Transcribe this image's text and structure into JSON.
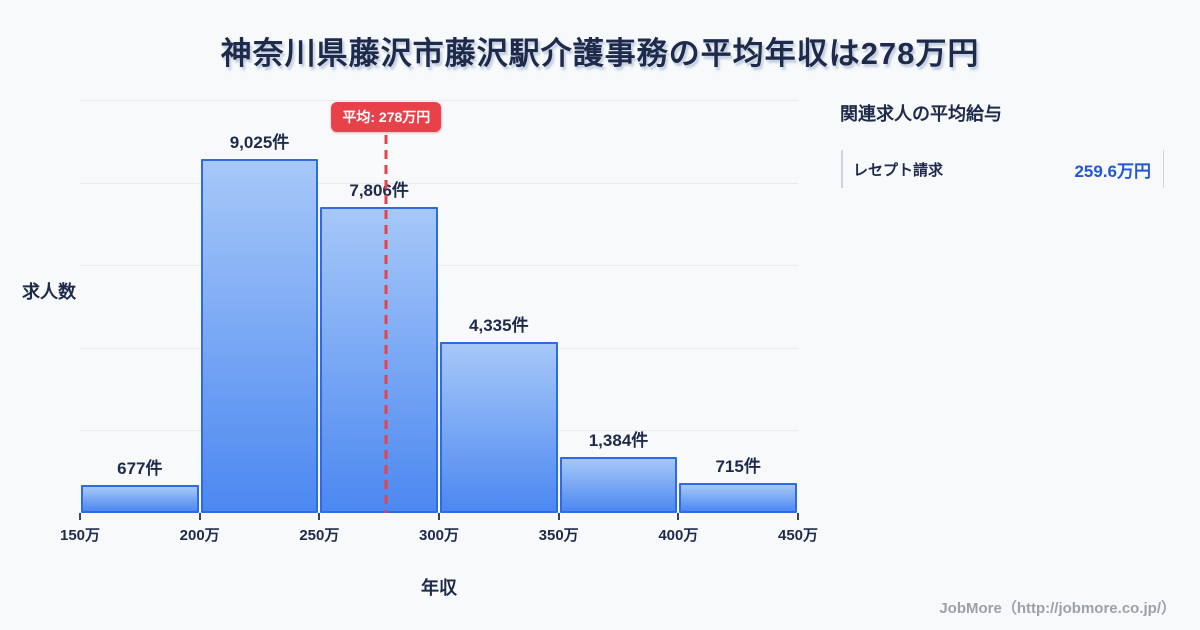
{
  "title": "神奈川県藤沢市藤沢駅介護事務の平均年収は278万円",
  "chart_data": {
    "type": "bar",
    "title": "神奈川県藤沢市藤沢駅介護事務の平均年収は278万円",
    "xlabel": "年収",
    "ylabel": "求人数",
    "xlim": [
      150,
      450
    ],
    "grid": true,
    "legend": false,
    "x_tick_labels": [
      "150万",
      "200万",
      "250万",
      "300万",
      "350万",
      "400万",
      "450万"
    ],
    "bins": [
      {
        "range": [
          150,
          200
        ],
        "value": 677,
        "label": "677件"
      },
      {
        "range": [
          200,
          250
        ],
        "value": 9025,
        "label": "9,025件"
      },
      {
        "range": [
          250,
          300
        ],
        "value": 7806,
        "label": "7,806件"
      },
      {
        "range": [
          300,
          350
        ],
        "value": 4335,
        "label": "4,335件"
      },
      {
        "range": [
          350,
          400
        ],
        "value": 1384,
        "label": "1,384件"
      },
      {
        "range": [
          400,
          450
        ],
        "value": 715,
        "label": "715件"
      }
    ],
    "mean": {
      "value": 278,
      "label": "平均: 278万円"
    }
  },
  "side_panel": {
    "title": "関連求人の平均給与",
    "rows": [
      {
        "label": "レセプト請求",
        "value": "259.6万円"
      }
    ]
  },
  "footer": {
    "credit": "JobMore（http://jobmore.co.jp/）"
  },
  "colors": {
    "background": "#f7f9fb",
    "title_text": "#1e2a4a",
    "bar_gradient_top": "#a6c8f8",
    "bar_gradient_bottom": "#4c88f1",
    "bar_border": "#2d6ae3",
    "mean_red": "#e8414a",
    "grid_line": "#e8ebf1",
    "value_blue": "#2257d6",
    "credit_gray": "#9ba0aa"
  }
}
